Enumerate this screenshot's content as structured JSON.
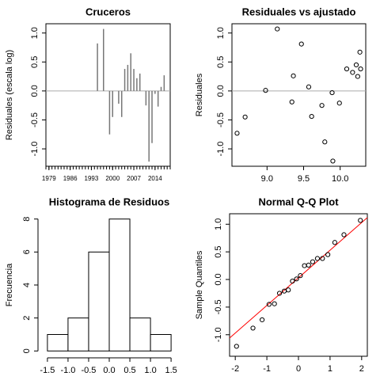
{
  "chart_data": [
    {
      "type": "bar",
      "title": "Cruceros",
      "ylabel": "Residuales (escala log)",
      "x": [
        1995,
        1997,
        1999,
        2000,
        2002,
        2003,
        2004,
        2005,
        2006,
        2007,
        2008,
        2009,
        2011,
        2012,
        2013,
        2014,
        2015,
        2016,
        2017
      ],
      "values": [
        0.82,
        1.07,
        -0.75,
        -0.45,
        -0.22,
        -0.45,
        0.38,
        0.45,
        0.65,
        0.38,
        0.22,
        0.3,
        -0.25,
        -1.22,
        -0.9,
        -0.05,
        -0.27,
        0.07,
        0.27
      ],
      "color": "#777777",
      "hline": 0,
      "hline_color": "#aaaaaa",
      "xlim": [
        1978,
        2019
      ],
      "xticks": [
        1979,
        1986,
        1993,
        2000,
        2007,
        2014
      ],
      "x_minor_step": 1,
      "ylim": [
        -1.3,
        1.16
      ],
      "yticks": [
        {
          "value": -1,
          "label": "-1.0"
        },
        -0.5,
        {
          "value": 0,
          "label": "0.0"
        },
        0.5,
        {
          "value": 1,
          "label": "1.0"
        }
      ]
    },
    {
      "type": "scatter",
      "title": "Residuales vs ajustado",
      "ylabel": "Residuales",
      "x": [
        8.59,
        8.7,
        8.98,
        9.14,
        9.34,
        9.36,
        9.47,
        9.57,
        9.61,
        9.75,
        9.79,
        9.89,
        9.9,
        9.99,
        10.09,
        10.17,
        10.22,
        10.24,
        10.27,
        10.28
      ],
      "values": [
        -0.73,
        -0.45,
        0.01,
        1.07,
        -0.19,
        0.26,
        0.81,
        0.07,
        -0.44,
        -0.25,
        -0.88,
        -0.03,
        -1.21,
        -0.21,
        0.38,
        0.32,
        0.45,
        0.25,
        0.67,
        0.38
      ],
      "color": "#000000",
      "hline": 0,
      "hline_color": "#aaaaaa",
      "xlim": [
        8.52,
        10.35
      ],
      "xticks": [
        {
          "value": 9,
          "label": "9.0"
        },
        9.5,
        {
          "value": 10,
          "label": "10.0"
        }
      ],
      "ylim": [
        -1.3,
        1.16
      ],
      "yticks": [
        {
          "value": -1,
          "label": "-1.0"
        },
        -0.5,
        {
          "value": 0,
          "label": "0.0"
        },
        0.5,
        {
          "value": 1,
          "label": "1.0"
        }
      ]
    },
    {
      "type": "histogram",
      "title": "Histograma de Residuos",
      "ylabel": "Frecuencia",
      "bins": [
        -1.5,
        -1,
        -0.5,
        0,
        0.5,
        1,
        1.5
      ],
      "values": [
        1,
        2,
        6,
        8,
        2,
        1
      ],
      "color": "#ffffff",
      "xlim": [
        -1.69,
        1.69
      ],
      "xticks": [
        -1.5,
        {
          "value": -1,
          "label": "-1.0"
        },
        -0.5,
        {
          "value": 0,
          "label": "0.0"
        },
        0.5,
        {
          "value": 1,
          "label": "1.0"
        },
        1.5
      ],
      "ylim": [
        -0.32,
        8.32
      ],
      "yticks": [
        0,
        2,
        4,
        6,
        8
      ]
    },
    {
      "type": "qq",
      "title": "Normal Q-Q Plot",
      "ylabel": "Sample Quantiles",
      "x": [
        -1.96,
        -1.44,
        -1.15,
        -0.93,
        -0.76,
        -0.6,
        -0.45,
        -0.32,
        -0.19,
        -0.06,
        0.06,
        0.19,
        0.32,
        0.45,
        0.6,
        0.76,
        0.93,
        1.15,
        1.44,
        1.96
      ],
      "values": [
        -1.21,
        -0.88,
        -0.73,
        -0.45,
        -0.44,
        -0.25,
        -0.21,
        -0.19,
        -0.03,
        0.01,
        0.07,
        0.25,
        0.26,
        0.32,
        0.38,
        0.38,
        0.45,
        0.67,
        0.81,
        1.07
      ],
      "color": "#000000",
      "qqline": {
        "intercept": 0.03,
        "slope": 0.5,
        "color": "#ff0000"
      },
      "xlim": [
        -2.18,
        2.18
      ],
      "xticks": [
        -2,
        -1,
        0,
        1,
        2
      ],
      "ylim": [
        -1.39,
        1.19
      ],
      "yticks": [
        {
          "value": -1,
          "label": "-1.0"
        },
        -0.5,
        {
          "value": 0,
          "label": "0.0"
        },
        0.5,
        {
          "value": 1,
          "label": "1.0"
        }
      ]
    }
  ]
}
